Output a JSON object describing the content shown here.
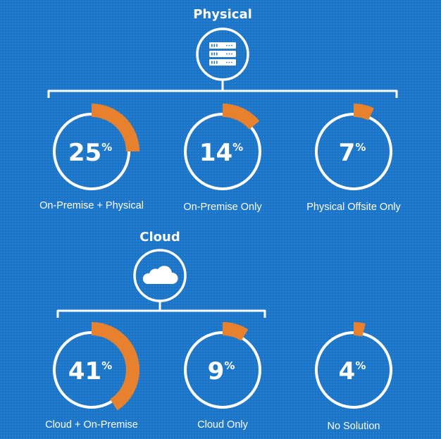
{
  "sections": [
    {
      "title": "Physical",
      "icon": "server-icon",
      "stats": [
        {
          "value": 25,
          "symbol": "%",
          "label": "On-Premise + Physical"
        },
        {
          "value": 14,
          "symbol": "%",
          "label": "On-Premise Only"
        },
        {
          "value": 7,
          "symbol": "%",
          "label": "Physical Offsite Only"
        }
      ]
    },
    {
      "title": "Cloud",
      "icon": "cloud-icon",
      "stats": [
        {
          "value": 41,
          "symbol": "%",
          "label": "Cloud + On-Premise"
        },
        {
          "value": 9,
          "symbol": "%",
          "label": "Cloud Only"
        },
        {
          "value": 4,
          "symbol": "%",
          "label": "No Solution"
        }
      ]
    }
  ],
  "colors": {
    "background": "#1a74c7",
    "ring": "#ffffff",
    "accent": "#e8812e"
  }
}
